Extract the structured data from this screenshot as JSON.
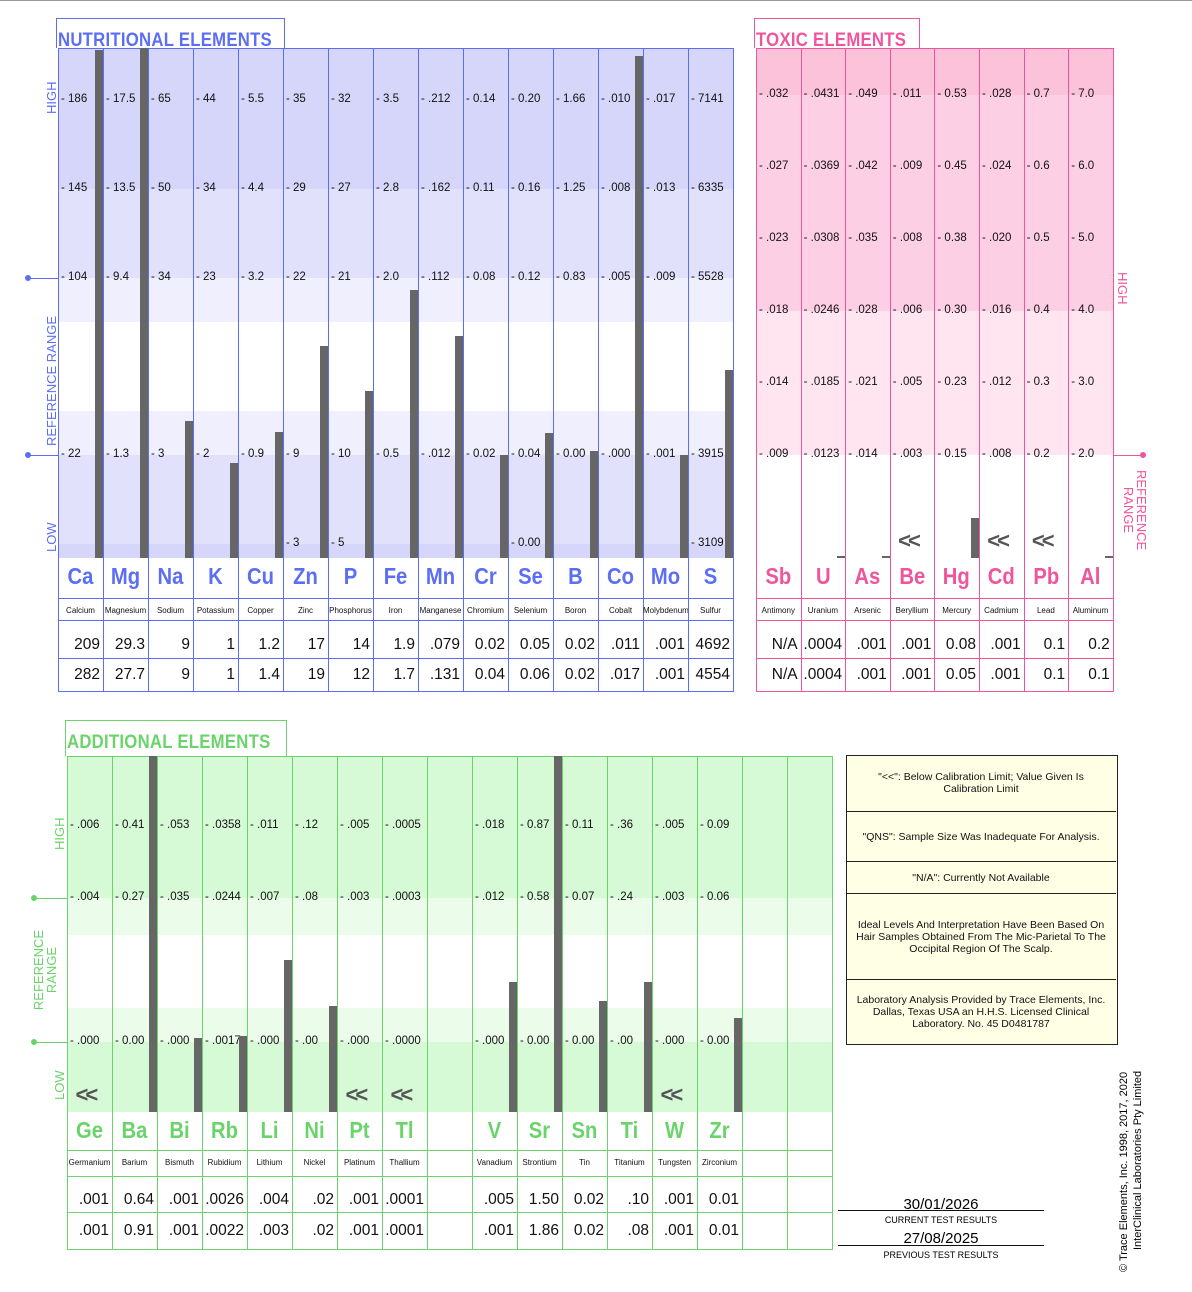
{
  "nutritional": {
    "title": "NUTRITIONAL ELEMENTS",
    "axis": {
      "high": "HIGH",
      "reference": "REFERENCE   RANGE",
      "low": "LOW"
    },
    "color": "#5b6ef5",
    "elements": [
      {
        "symbol": "Ca",
        "name": "Calcium",
        "ticks": [
          "186",
          "145",
          "104",
          "22",
          null
        ],
        "current": "209",
        "previous": "282"
      },
      {
        "symbol": "Mg",
        "name": "Magnesium",
        "ticks": [
          "17.5",
          "13.5",
          "9.4",
          "1.3",
          null
        ],
        "current": "29.3",
        "previous": "27.7"
      },
      {
        "symbol": "Na",
        "name": "Sodium",
        "ticks": [
          "65",
          "50",
          "34",
          "3",
          null
        ],
        "current": "9",
        "previous": "9"
      },
      {
        "symbol": "K",
        "name": "Potassium",
        "ticks": [
          "44",
          "34",
          "23",
          "2",
          null
        ],
        "current": "1",
        "previous": "1"
      },
      {
        "symbol": "Cu",
        "name": "Copper",
        "ticks": [
          "5.5",
          "4.4",
          "3.2",
          "0.9",
          null
        ],
        "current": "1.2",
        "previous": "1.4"
      },
      {
        "symbol": "Zn",
        "name": "Zinc",
        "ticks": [
          "35",
          "29",
          "22",
          "9",
          "3"
        ],
        "current": "17",
        "previous": "19"
      },
      {
        "symbol": "P",
        "name": "Phosphorus",
        "ticks": [
          "32",
          "27",
          "21",
          "10",
          "5"
        ],
        "current": "14",
        "previous": "12"
      },
      {
        "symbol": "Fe",
        "name": "Iron",
        "ticks": [
          "3.5",
          "2.8",
          "2.0",
          "0.5",
          null
        ],
        "current": "1.9",
        "previous": "1.7"
      },
      {
        "symbol": "Mn",
        "name": "Manganese",
        "ticks": [
          ".212",
          ".162",
          ".112",
          ".012",
          null
        ],
        "current": ".079",
        "previous": ".131"
      },
      {
        "symbol": "Cr",
        "name": "Chromium",
        "ticks": [
          "0.14",
          "0.11",
          "0.08",
          "0.02",
          null
        ],
        "current": "0.02",
        "previous": "0.04"
      },
      {
        "symbol": "Se",
        "name": "Selenium",
        "ticks": [
          "0.20",
          "0.16",
          "0.12",
          "0.04",
          "0.00"
        ],
        "current": "0.05",
        "previous": "0.06"
      },
      {
        "symbol": "B",
        "name": "Boron",
        "ticks": [
          "1.66",
          "1.25",
          "0.83",
          "0.00",
          null
        ],
        "current": "0.02",
        "previous": "0.02"
      },
      {
        "symbol": "Co",
        "name": "Cobalt",
        "ticks": [
          ".010",
          ".008",
          ".005",
          ".000",
          null
        ],
        "current": ".011",
        "previous": ".017"
      },
      {
        "symbol": "Mo",
        "name": "Molybdenum",
        "ticks": [
          ".017",
          ".013",
          ".009",
          ".001",
          null
        ],
        "current": ".001",
        "previous": ".001"
      },
      {
        "symbol": "S",
        "name": "Sulfur",
        "ticks": [
          "7141",
          "6335",
          "5528",
          "3915",
          "3109"
        ],
        "current": "4692",
        "previous": "4554"
      }
    ]
  },
  "toxic": {
    "title": "TOXIC ELEMENTS",
    "axis": {
      "high": "HIGH",
      "reference": "REFERENCE RANGE"
    },
    "color": "#f0549c",
    "elements": [
      {
        "symbol": "Sb",
        "name": "Antimony",
        "ticks": [
          ".032",
          ".027",
          ".023",
          ".018",
          ".014",
          ".009"
        ],
        "current": "N/A",
        "previous": "N/A"
      },
      {
        "symbol": "U",
        "name": "Uranium",
        "ticks": [
          ".0431",
          ".0369",
          ".0308",
          ".0246",
          ".0185",
          ".0123"
        ],
        "current": ".0004",
        "previous": ".0004"
      },
      {
        "symbol": "As",
        "name": "Arsenic",
        "ticks": [
          ".049",
          ".042",
          ".035",
          ".028",
          ".021",
          ".014"
        ],
        "current": ".001",
        "previous": ".001"
      },
      {
        "symbol": "Be",
        "name": "Beryllium",
        "ticks": [
          ".011",
          ".009",
          ".008",
          ".006",
          ".005",
          ".003"
        ],
        "current": ".001",
        "previous": ".001",
        "below_limit": true
      },
      {
        "symbol": "Hg",
        "name": "Mercury",
        "ticks": [
          "0.53",
          "0.45",
          "0.38",
          "0.30",
          "0.23",
          "0.15"
        ],
        "current": "0.08",
        "previous": "0.05"
      },
      {
        "symbol": "Cd",
        "name": "Cadmium",
        "ticks": [
          ".028",
          ".024",
          ".020",
          ".016",
          ".012",
          ".008"
        ],
        "current": ".001",
        "previous": ".001",
        "below_limit": true
      },
      {
        "symbol": "Pb",
        "name": "Lead",
        "ticks": [
          "0.7",
          "0.6",
          "0.5",
          "0.4",
          "0.3",
          "0.2"
        ],
        "current": "0.1",
        "previous": "0.1",
        "below_limit": true
      },
      {
        "symbol": "Al",
        "name": "Aluminum",
        "ticks": [
          "7.0",
          "6.0",
          "5.0",
          "4.0",
          "3.0",
          "2.0"
        ],
        "current": "0.2",
        "previous": "0.1"
      }
    ]
  },
  "additional": {
    "title": "ADDITIONAL ELEMENTS",
    "axis": {
      "high": "HIGH",
      "reference": "REFERENCE RANGE",
      "low": "LOW"
    },
    "color": "#6ad46a",
    "elements": [
      {
        "symbol": "Ge",
        "name": "Germanium",
        "ticks": [
          ".006",
          ".004",
          ".000"
        ],
        "current": ".001",
        "previous": ".001",
        "below_limit": true
      },
      {
        "symbol": "Ba",
        "name": "Barium",
        "ticks": [
          "0.41",
          "0.27",
          "0.00"
        ],
        "current": "0.64",
        "previous": "0.91"
      },
      {
        "symbol": "Bi",
        "name": "Bismuth",
        "ticks": [
          ".053",
          ".035",
          ".000"
        ],
        "current": ".001",
        "previous": ".001"
      },
      {
        "symbol": "Rb",
        "name": "Rubidium",
        "ticks": [
          ".0358",
          ".0244",
          ".0017"
        ],
        "current": ".0026",
        "previous": ".0022"
      },
      {
        "symbol": "Li",
        "name": "Lithium",
        "ticks": [
          ".011",
          ".007",
          ".000"
        ],
        "current": ".004",
        "previous": ".003"
      },
      {
        "symbol": "Ni",
        "name": "Nickel",
        "ticks": [
          ".12",
          ".08",
          ".00"
        ],
        "current": ".02",
        "previous": ".02"
      },
      {
        "symbol": "Pt",
        "name": "Platinum",
        "ticks": [
          ".005",
          ".003",
          ".000"
        ],
        "current": ".001",
        "previous": ".001",
        "below_limit": true
      },
      {
        "symbol": "Tl",
        "name": "Thallium",
        "ticks": [
          ".0005",
          ".0003",
          ".0000"
        ],
        "current": ".0001",
        "previous": ".0001",
        "below_limit": true
      },
      null,
      {
        "symbol": "V",
        "name": "Vanadium",
        "ticks": [
          ".018",
          ".012",
          ".000"
        ],
        "current": ".005",
        "previous": ".001"
      },
      {
        "symbol": "Sr",
        "name": "Strontium",
        "ticks": [
          "0.87",
          "0.58",
          "0.00"
        ],
        "current": "1.50",
        "previous": "1.86"
      },
      {
        "symbol": "Sn",
        "name": "Tin",
        "ticks": [
          "0.11",
          "0.07",
          "0.00"
        ],
        "current": "0.02",
        "previous": "0.02"
      },
      {
        "symbol": "Ti",
        "name": "Titanium",
        "ticks": [
          ".36",
          ".24",
          ".00"
        ],
        "current": ".10",
        "previous": ".08"
      },
      {
        "symbol": "W",
        "name": "Tungsten",
        "ticks": [
          ".005",
          ".003",
          ".000"
        ],
        "current": ".001",
        "previous": ".001",
        "below_limit": true
      },
      {
        "symbol": "Zr",
        "name": "Zirconium",
        "ticks": [
          "0.09",
          "0.06",
          "0.00"
        ],
        "current": "0.01",
        "previous": "0.01"
      },
      null,
      null
    ]
  },
  "below_limit_marker": "<<",
  "legend": [
    "\"<<\": Below Calibration Limit; Value Given Is Calibration Limit",
    "\"QNS\": Sample Size Was Inadequate For Analysis.",
    "\"N/A\": Currently Not Available",
    "Ideal Levels And Interpretation Have Been Based On Hair Samples Obtained From The Mic-Parietal To The Occipital Region Of The Scalp.",
    "Laboratory Analysis Provided by Trace Elements, Inc. Dallas, Texas USA an H.H.S. Licensed Clinical Laboratory. No. 45 D0481787"
  ],
  "dates": {
    "current": "30/01/2026",
    "current_label": "CURRENT  TEST  RESULTS",
    "previous": "27/08/2025",
    "previous_label": "PREVIOUS  TEST  RESULTS"
  },
  "copyright": [
    "© Trace Elements, Inc. 1998, 2017, 2020",
    "InterClinical Laboratories Pty Limited"
  ],
  "colors": {
    "bar": "#666666",
    "nutritional": "#5b6ef5",
    "toxic": "#f0549c",
    "additional": "#6ad46a"
  }
}
